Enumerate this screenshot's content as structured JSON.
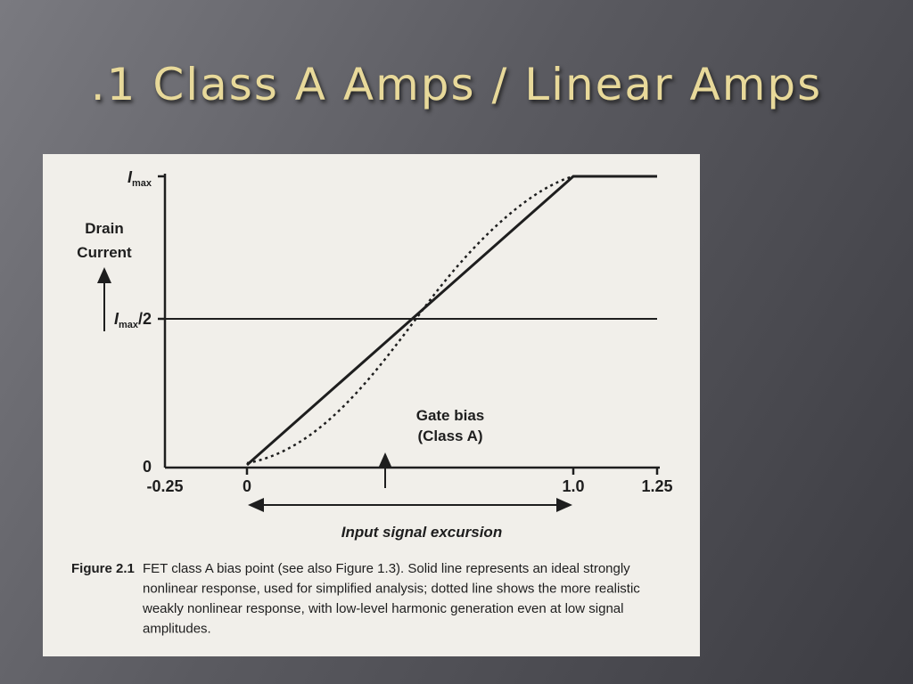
{
  "slide": {
    "title": ".1 Class A Amps / Linear Amps"
  },
  "figure": {
    "y_axis_title": [
      "Drain",
      "Current"
    ],
    "y_tick_labels": [
      {
        "main": "I",
        "sub": "max",
        "suffix": ""
      },
      {
        "main": "I",
        "sub": "max",
        "suffix": "/2"
      },
      {
        "main": "0",
        "sub": "",
        "suffix": ""
      }
    ],
    "x_tick_labels": [
      "-0.25",
      "0",
      "1.0",
      "1.25"
    ],
    "annotation": [
      "Gate bias",
      "(Class A)"
    ],
    "x_axis_title": "Input signal excursion",
    "caption_label": "Figure 2.1",
    "caption_lines": [
      "FET class A bias point (see also Figure 1.3). Solid line represents an ideal strongly",
      "nonlinear response, used for simplified analysis; dotted line shows the more realistic",
      "weakly nonlinear response, with low-level harmonic generation even at low signal",
      "amplitudes."
    ]
  }
}
